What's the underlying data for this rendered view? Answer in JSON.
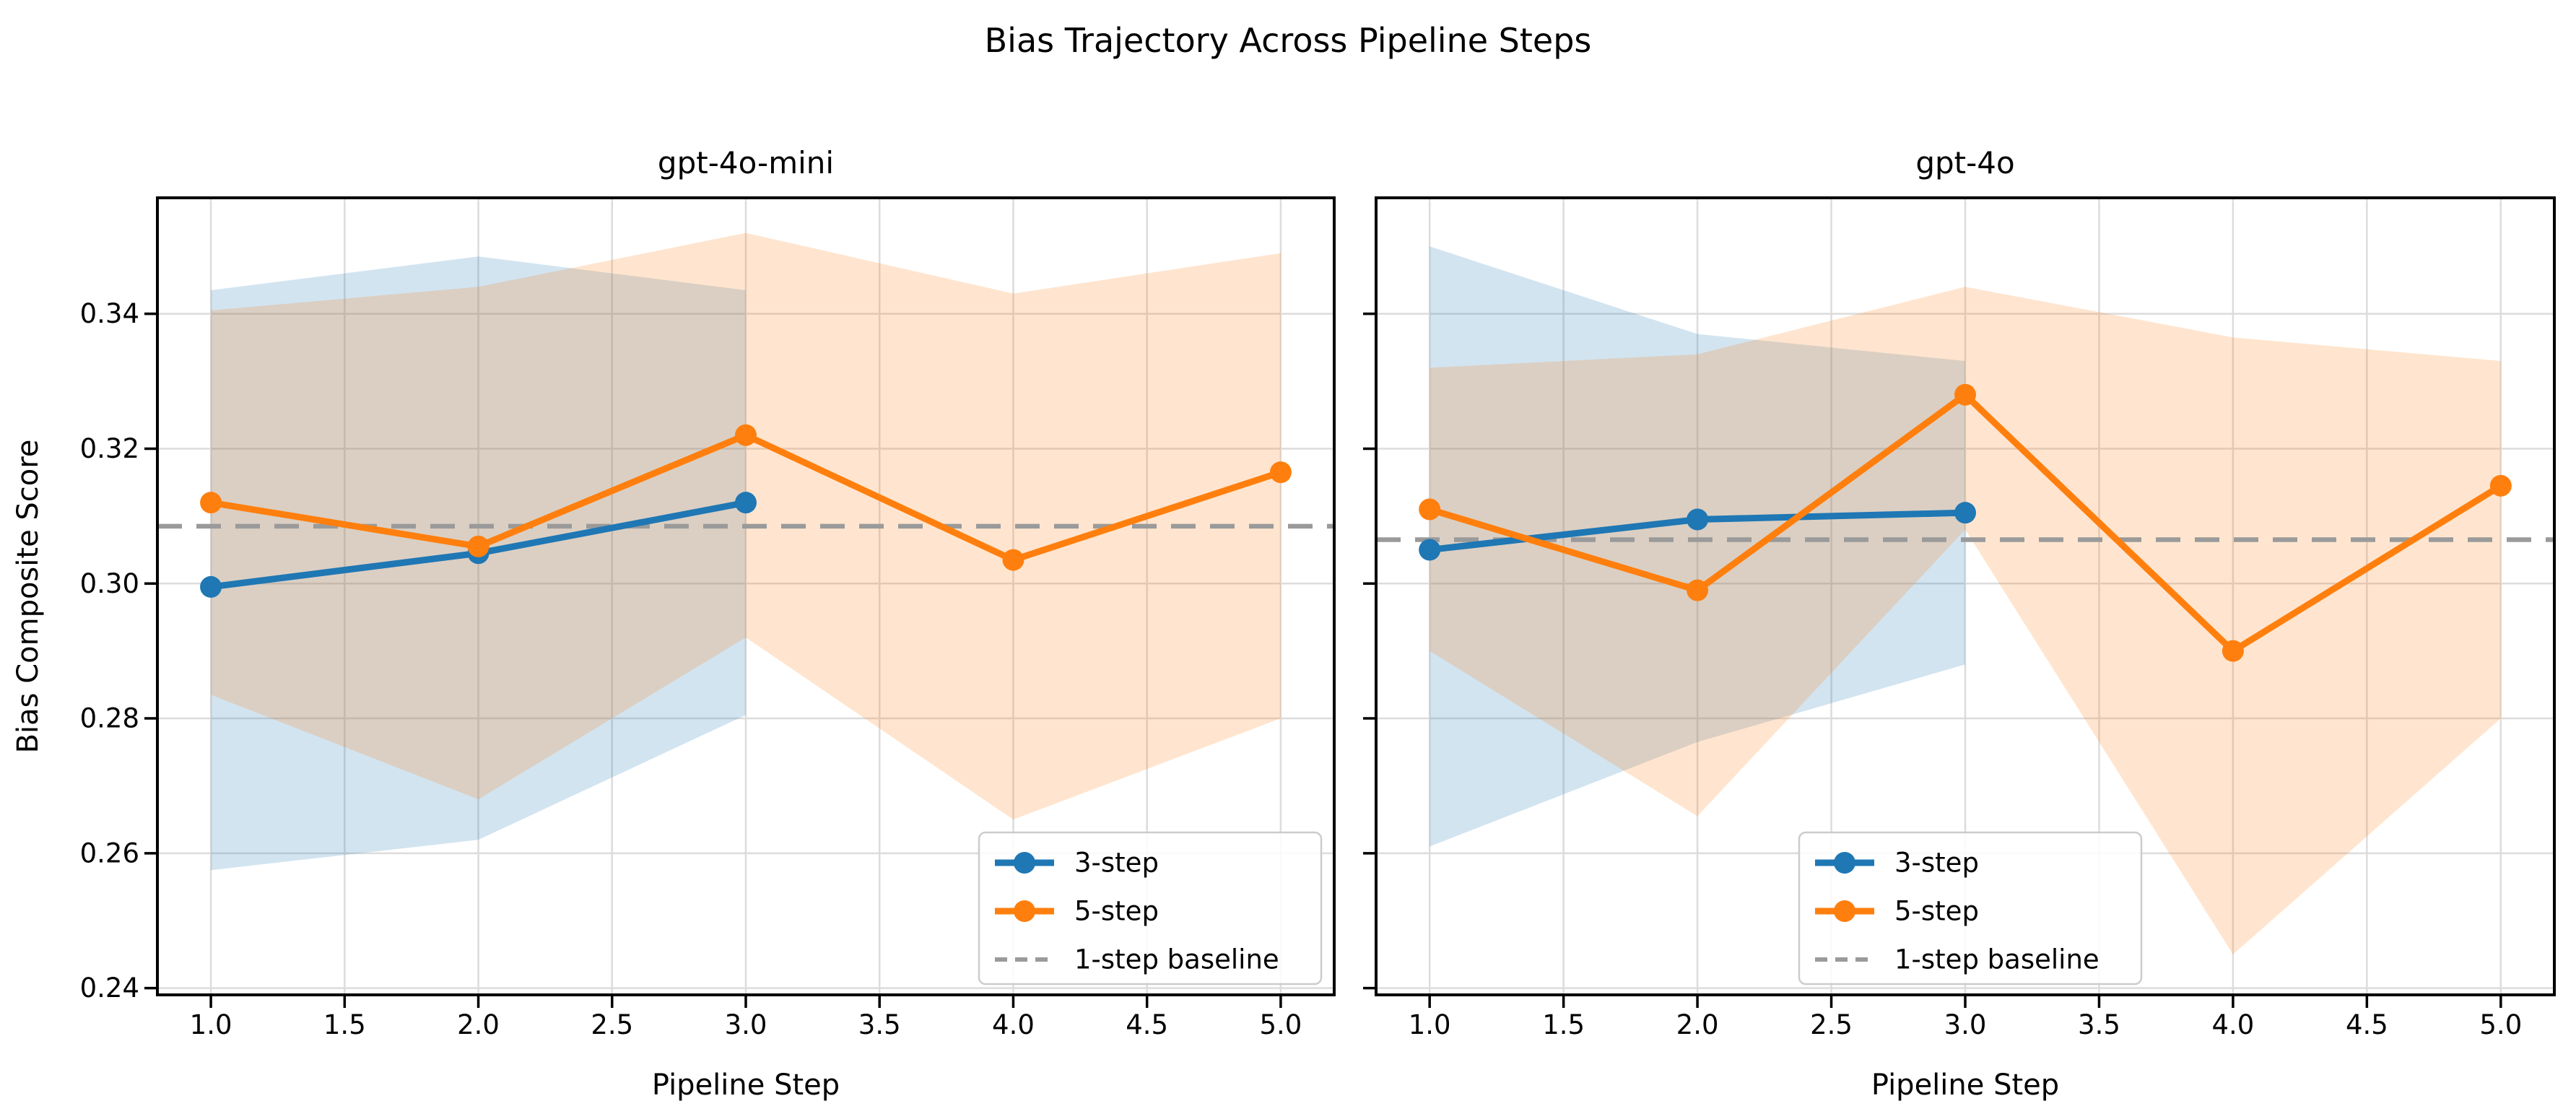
{
  "figure": {
    "suptitle": "Bias Trajectory Across Pipeline Steps",
    "background": "#ffffff",
    "grid_color": "#dcdcdc",
    "spine_color": "#000000"
  },
  "axes": {
    "xlabel": "Pipeline Step",
    "ylabel": "Bias Composite Score",
    "xtick_labels": [
      "1.0",
      "1.5",
      "2.0",
      "2.5",
      "3.0",
      "3.5",
      "4.0",
      "4.5",
      "5.0"
    ],
    "xtick_values": [
      1.0,
      1.5,
      2.0,
      2.5,
      3.0,
      3.5,
      4.0,
      4.5,
      5.0
    ],
    "ytick_labels": [
      "0.24",
      "0.26",
      "0.28",
      "0.30",
      "0.32",
      "0.34"
    ],
    "ytick_values": [
      0.24,
      0.26,
      0.28,
      0.3,
      0.32,
      0.34
    ],
    "xlim": [
      0.8,
      5.2
    ],
    "ylim": [
      0.239,
      0.3572
    ],
    "grid": true
  },
  "legend": {
    "position_left_subplot": "lower-right",
    "position_right_subplot": "lower-center",
    "items": [
      {
        "label": "3-step",
        "color": "#1f77b4",
        "style": "line-marker"
      },
      {
        "label": "5-step",
        "color": "#ff7f0e",
        "style": "line-marker"
      },
      {
        "label": "1-step baseline",
        "color": "#9a9a9a",
        "style": "dashed-line"
      }
    ]
  },
  "chart_data": [
    {
      "type": "line",
      "title": "gpt-4o-mini",
      "xlabel": "Pipeline Step",
      "ylabel": "Bias Composite Score",
      "xlim": [
        0.8,
        5.2
      ],
      "ylim": [
        0.239,
        0.3572
      ],
      "baseline": {
        "label": "1-step baseline",
        "value": 0.3085,
        "color": "#9a9a9a",
        "style": "dashed"
      },
      "series": [
        {
          "name": "3-step",
          "color": "#1f77b4",
          "x": [
            1,
            2,
            3
          ],
          "values": [
            0.2995,
            0.3045,
            0.312
          ],
          "band_lower": [
            0.2575,
            0.262,
            0.2805
          ],
          "band_upper": [
            0.3435,
            0.3485,
            0.3435
          ]
        },
        {
          "name": "5-step",
          "color": "#ff7f0e",
          "x": [
            1,
            2,
            3,
            4,
            5
          ],
          "values": [
            0.312,
            0.3055,
            0.322,
            0.3035,
            0.3165
          ],
          "band_lower": [
            0.2835,
            0.268,
            0.292,
            0.265,
            0.28
          ],
          "band_upper": [
            0.3405,
            0.344,
            0.352,
            0.343,
            0.349
          ]
        }
      ],
      "legend_position": "lower-right"
    },
    {
      "type": "line",
      "title": "gpt-4o",
      "xlabel": "Pipeline Step",
      "ylabel": "",
      "xlim": [
        0.8,
        5.2
      ],
      "ylim": [
        0.239,
        0.3572
      ],
      "baseline": {
        "label": "1-step baseline",
        "value": 0.3065,
        "color": "#9a9a9a",
        "style": "dashed"
      },
      "series": [
        {
          "name": "3-step",
          "color": "#1f77b4",
          "x": [
            1,
            2,
            3
          ],
          "values": [
            0.305,
            0.3095,
            0.3105
          ],
          "band_lower": [
            0.261,
            0.2765,
            0.288
          ],
          "band_upper": [
            0.35,
            0.337,
            0.333
          ]
        },
        {
          "name": "5-step",
          "color": "#ff7f0e",
          "x": [
            1,
            2,
            3,
            4,
            5
          ],
          "values": [
            0.311,
            0.299,
            0.328,
            0.29,
            0.3145
          ],
          "band_lower": [
            0.29,
            0.2655,
            0.308,
            0.245,
            0.28
          ],
          "band_upper": [
            0.332,
            0.334,
            0.344,
            0.3365,
            0.333
          ]
        }
      ],
      "legend_position": "lower-center"
    }
  ]
}
